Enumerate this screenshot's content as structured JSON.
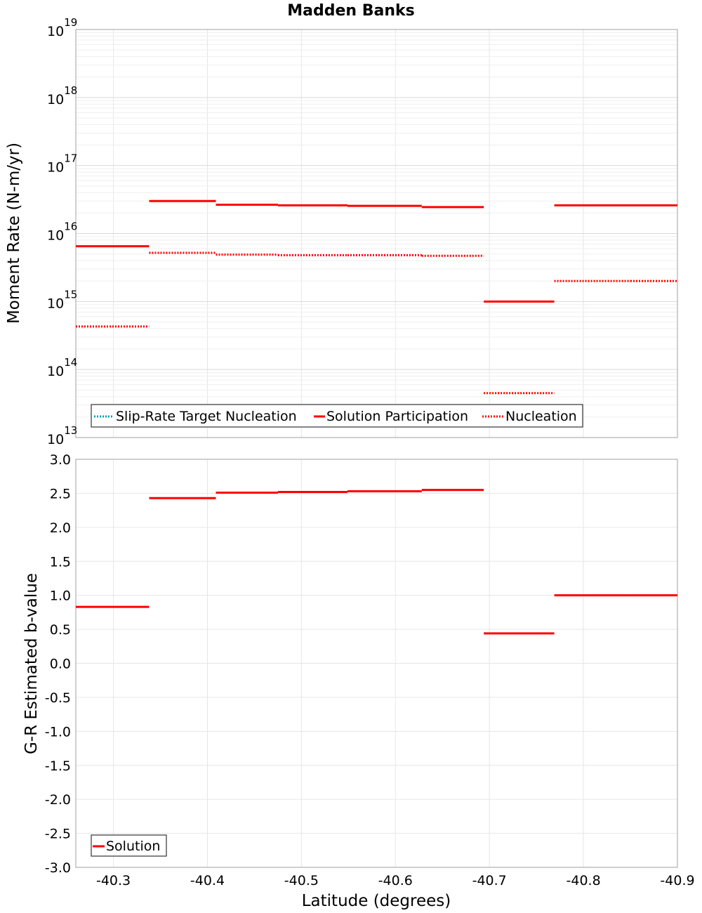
{
  "chart_data": {
    "title": "Madden Banks",
    "xlabel": "Latitude (degrees)",
    "xlim": [
      -40.26,
      -40.9
    ],
    "xticks": [
      "-40.3",
      "-40.4",
      "-40.5",
      "-40.6",
      "-40.7",
      "-40.8",
      "-40.9"
    ],
    "xtick_values": [
      -40.3,
      -40.4,
      -40.5,
      -40.6,
      -40.7,
      -40.8,
      -40.9
    ],
    "top_panel": {
      "type": "line",
      "scale": "log",
      "ylabel": "Moment Rate (N-m/yr)",
      "ylim": [
        10000000000000.0,
        1e+19
      ],
      "ytick_base": "10",
      "ytick_exponents": [
        "13",
        "14",
        "15",
        "16",
        "17",
        "18",
        "19"
      ],
      "legend": [
        "Slip-Rate Target Nucleation",
        "Solution Participation",
        "Nucleation"
      ],
      "legend_location": "bottom-left",
      "series": [
        {
          "name": "Slip-Rate Target Nucleation",
          "color": "#00a0b0",
          "style": "dotted",
          "segments": []
        },
        {
          "name": "Solution Participation",
          "color": "#ff0000",
          "style": "solid",
          "segments": [
            {
              "x0": -40.26,
              "x1": -40.338,
              "y": 6500000000000000.0
            },
            {
              "x0": -40.338,
              "x1": -40.409,
              "y": 3e+16
            },
            {
              "x0": -40.409,
              "x1": -40.475,
              "y": 2.65e+16
            },
            {
              "x0": -40.475,
              "x1": -40.549,
              "y": 2.6e+16
            },
            {
              "x0": -40.549,
              "x1": -40.628,
              "y": 2.55e+16
            },
            {
              "x0": -40.628,
              "x1": -40.694,
              "y": 2.45e+16
            },
            {
              "x0": -40.694,
              "x1": -40.769,
              "y": 1000000000000000.0
            },
            {
              "x0": -40.769,
              "x1": -40.85,
              "y": 2.6e+16
            },
            {
              "x0": -40.85,
              "x1": -40.9,
              "y": 2.6e+16
            }
          ]
        },
        {
          "name": "Nucleation",
          "color": "#ff0000",
          "style": "dotted",
          "segments": [
            {
              "x0": -40.26,
              "x1": -40.338,
              "y": 430000000000000.0
            },
            {
              "x0": -40.338,
              "x1": -40.409,
              "y": 5200000000000000.0
            },
            {
              "x0": -40.409,
              "x1": -40.475,
              "y": 4900000000000000.0
            },
            {
              "x0": -40.475,
              "x1": -40.549,
              "y": 4800000000000000.0
            },
            {
              "x0": -40.549,
              "x1": -40.628,
              "y": 4800000000000000.0
            },
            {
              "x0": -40.628,
              "x1": -40.694,
              "y": 4700000000000000.0
            },
            {
              "x0": -40.694,
              "x1": -40.769,
              "y": 45000000000000.0
            },
            {
              "x0": -40.769,
              "x1": -40.85,
              "y": 2000000000000000.0
            },
            {
              "x0": -40.85,
              "x1": -40.9,
              "y": 2000000000000000.0
            }
          ]
        }
      ]
    },
    "bottom_panel": {
      "type": "line",
      "scale": "linear",
      "ylabel": "G-R Estimated b-value",
      "ylim": [
        -3.0,
        3.0
      ],
      "yticks": [
        "3.0",
        "2.5",
        "2.0",
        "1.5",
        "1.0",
        "0.5",
        "0.0",
        "-0.5",
        "-1.0",
        "-1.5",
        "-2.0",
        "-2.5",
        "-3.0"
      ],
      "ytick_values": [
        3.0,
        2.5,
        2.0,
        1.5,
        1.0,
        0.5,
        0.0,
        -0.5,
        -1.0,
        -1.5,
        -2.0,
        -2.5,
        -3.0
      ],
      "legend": [
        "Solution"
      ],
      "legend_location": "bottom-left",
      "series": [
        {
          "name": "Solution",
          "color": "#ff0000",
          "style": "solid",
          "segments": [
            {
              "x0": -40.26,
              "x1": -40.338,
              "y": 0.83
            },
            {
              "x0": -40.338,
              "x1": -40.409,
              "y": 2.43
            },
            {
              "x0": -40.409,
              "x1": -40.475,
              "y": 2.51
            },
            {
              "x0": -40.475,
              "x1": -40.549,
              "y": 2.52
            },
            {
              "x0": -40.549,
              "x1": -40.628,
              "y": 2.53
            },
            {
              "x0": -40.628,
              "x1": -40.694,
              "y": 2.55
            },
            {
              "x0": -40.694,
              "x1": -40.769,
              "y": 0.44
            },
            {
              "x0": -40.769,
              "x1": -40.85,
              "y": 1.0
            },
            {
              "x0": -40.85,
              "x1": -40.9,
              "y": 1.0
            }
          ]
        }
      ]
    }
  }
}
